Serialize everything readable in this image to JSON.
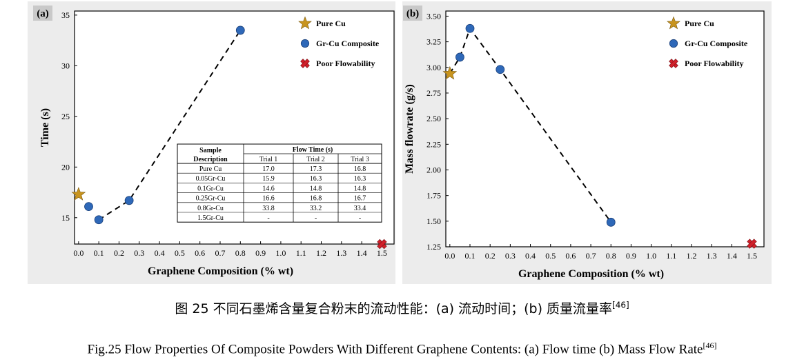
{
  "chart_data": [
    {
      "type": "scatter",
      "panel_label": "(a)",
      "xlabel": "Graphene Composition (% wt)",
      "ylabel": "Time (s)",
      "xlim": [
        -0.02,
        1.56
      ],
      "ylim": [
        12.4,
        35.4
      ],
      "x_ticks": [
        "0.0",
        "0.1",
        "0.2",
        "0.3",
        "0.4",
        "0.5",
        "0.6",
        "0.7",
        "0.8",
        "0.9",
        "1.0",
        "1.1",
        "1.2",
        "1.3",
        "1.4",
        "1.5"
      ],
      "y_ticks": [
        "15",
        "20",
        "25",
        "30",
        "35"
      ],
      "legend": {
        "placement": "top-right",
        "entries": [
          "Pure Cu",
          "Gr-Cu Composite",
          "Poor Flowability"
        ]
      },
      "series": [
        {
          "name": "Pure Cu",
          "marker": "star",
          "color": "#c8941e",
          "points": [
            [
              0.0,
              17.3
            ]
          ]
        },
        {
          "name": "Gr-Cu Composite",
          "marker": "circle",
          "color": "#2e68b8",
          "points": [
            [
              0.05,
              16.1
            ],
            [
              0.1,
              14.8
            ],
            [
              0.25,
              16.7
            ],
            [
              0.8,
              33.5
            ]
          ]
        },
        {
          "name": "Poor Flowability",
          "marker": "cross",
          "color": "#d0202a",
          "points": [
            [
              1.5,
              12.4
            ]
          ]
        }
      ],
      "trend_line": [
        [
          0.1,
          14.8
        ],
        [
          0.25,
          16.7
        ],
        [
          0.8,
          33.5
        ]
      ],
      "table": {
        "headers": [
          "Sample Description",
          "Flow Time (s)"
        ],
        "subheaders": [
          "Trial 1",
          "Trial 2",
          "Trial 3"
        ],
        "rows": [
          [
            "Pure Cu",
            "17.0",
            "17.3",
            "16.8"
          ],
          [
            "0.05Gr-Cu",
            "15.9",
            "16.3",
            "16.3"
          ],
          [
            "0.1Gr-Cu",
            "14.6",
            "14.8",
            "14.8"
          ],
          [
            "0.25Gr-Cu",
            "16.6",
            "16.8",
            "16.7"
          ],
          [
            "0.8Gr-Cu",
            "33.8",
            "33.2",
            "33.4"
          ],
          [
            "1.5Gr-Cu",
            "-",
            "-",
            "-"
          ]
        ]
      }
    },
    {
      "type": "scatter",
      "panel_label": "(b)",
      "xlabel": "Graphene Composition (% wt)",
      "ylabel": "Mass flowrate (g/s)",
      "xlim": [
        -0.02,
        1.56
      ],
      "ylim": [
        1.25,
        3.55
      ],
      "x_ticks": [
        "0.0",
        "0.1",
        "0.2",
        "0.3",
        "0.4",
        "0.5",
        "0.6",
        "0.7",
        "0.8",
        "0.9",
        "1.0",
        "1.1",
        "1.2",
        "1.3",
        "1.4",
        "1.5"
      ],
      "y_ticks": [
        "1.25",
        "1.50",
        "1.75",
        "2.00",
        "2.25",
        "2.50",
        "2.75",
        "3.00",
        "3.25",
        "3.50"
      ],
      "legend": {
        "placement": "top-right",
        "entries": [
          "Pure Cu",
          "Gr-Cu Composite",
          "Poor Flowability"
        ]
      },
      "series": [
        {
          "name": "Pure Cu",
          "marker": "star",
          "color": "#c8941e",
          "points": [
            [
              0.0,
              2.94
            ]
          ]
        },
        {
          "name": "Gr-Cu Composite",
          "marker": "circle",
          "color": "#2e68b8",
          "points": [
            [
              0.05,
              3.1
            ],
            [
              0.1,
              3.38
            ],
            [
              0.25,
              2.98
            ],
            [
              0.8,
              1.49
            ]
          ]
        },
        {
          "name": "Poor Flowability",
          "marker": "cross",
          "color": "#d0202a",
          "points": [
            [
              1.5,
              1.28
            ]
          ]
        }
      ],
      "trend_line": [
        [
          0.0,
          2.94
        ],
        [
          0.05,
          3.1
        ],
        [
          0.1,
          3.38
        ],
        [
          0.25,
          2.98
        ],
        [
          0.8,
          1.49
        ]
      ]
    }
  ],
  "captions": {
    "cn_main": "图 25 不同石墨烯含量复合粉末的流动性能：(a)  流动时间；(b)  质量流量率",
    "cn_ref": "[46]",
    "en_main": "Fig.25 Flow Properties Of Composite Powders With Different Graphene Contents: (a) Flow time (b) Mass Flow Rate",
    "en_ref": "[46]"
  }
}
